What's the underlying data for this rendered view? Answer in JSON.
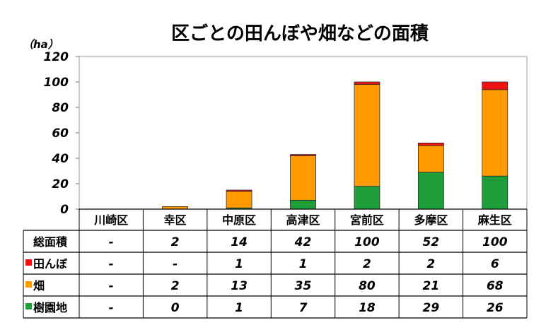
{
  "chart_data": {
    "type": "bar",
    "stacked": true,
    "title": "区ごとの田んぼや畑などの面積",
    "ylabel": "（ha）",
    "ylim": [
      0,
      120
    ],
    "yticks": [
      "0",
      "20",
      "40",
      "60",
      "80",
      "100",
      "120"
    ],
    "grid": false,
    "categories": [
      "川崎区",
      "幸区",
      "中原区",
      "高津区",
      "宮前区",
      "多摩区",
      "麻生区"
    ],
    "series": [
      {
        "name": "樹園地",
        "color": "#1e9e3a",
        "values": [
          0,
          0,
          1,
          7,
          18,
          29,
          26
        ]
      },
      {
        "name": "畑",
        "color": "#ff9a00",
        "values": [
          0,
          2,
          13,
          35,
          80,
          21,
          68
        ]
      },
      {
        "name": "田んぼ",
        "color": "#ee1111",
        "values": [
          0,
          0,
          1,
          1,
          2,
          2,
          6
        ]
      }
    ],
    "table": {
      "rows": [
        {
          "label": "総面積",
          "marker": null,
          "cells": [
            "-",
            "2",
            "14",
            "42",
            "100",
            "52",
            "100"
          ]
        },
        {
          "label": "田んぼ",
          "marker": "#ee1111",
          "cells": [
            "-",
            "-",
            "1",
            "1",
            "2",
            "2",
            "6"
          ]
        },
        {
          "label": "畑",
          "marker": "#ff9a00",
          "cells": [
            "-",
            "2",
            "13",
            "35",
            "80",
            "21",
            "68"
          ]
        },
        {
          "label": "樹園地",
          "marker": "#1e9e3a",
          "cells": [
            "-",
            "0",
            "1",
            "7",
            "18",
            "29",
            "26"
          ]
        }
      ]
    }
  }
}
